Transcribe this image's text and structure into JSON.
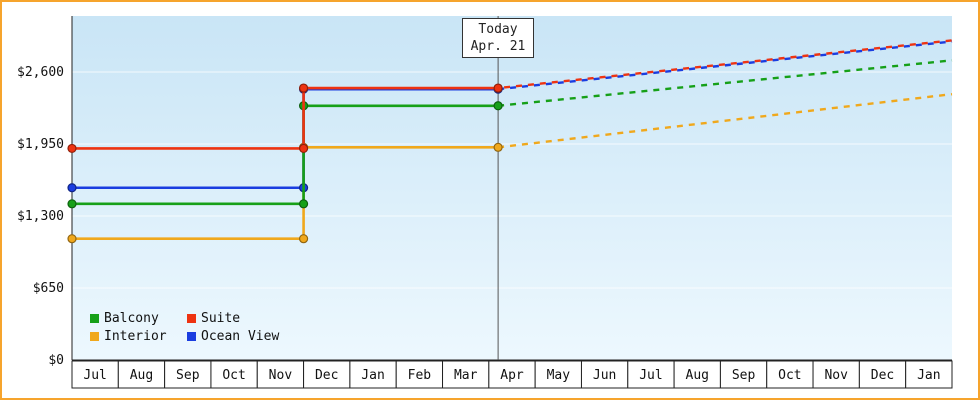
{
  "chart_data": {
    "type": "line",
    "title": "",
    "xlabel": "",
    "ylabel": "",
    "ylim": [
      0,
      3100
    ],
    "history_style": "solid-step",
    "forecast_style": "dashed",
    "legend_position": "bottom-left",
    "grid": true,
    "months": [
      "Jul",
      "Aug",
      "Sep",
      "Oct",
      "Nov",
      "Dec",
      "Jan",
      "Feb",
      "Mar",
      "Apr",
      "May",
      "Jun",
      "Jul",
      "Aug",
      "Sep",
      "Oct",
      "Nov",
      "Dec",
      "Jan"
    ],
    "y_axis": {
      "ticks": [
        0,
        650,
        1300,
        1950,
        2600
      ],
      "tick_labels": [
        "$0",
        "$650",
        "$1,300",
        "$1,950",
        "$2,600"
      ]
    },
    "today": {
      "line1": "Today",
      "line2": "Apr. 21",
      "month_index": 9.2
    },
    "step_month_index": 5,
    "series": [
      {
        "name": "Balcony",
        "color": "#16a018",
        "z": 2,
        "history": [
          {
            "m": 0,
            "price": 1410
          },
          {
            "m": 5,
            "price": 1410
          },
          {
            "m": 5,
            "price": 2295
          },
          {
            "m": 9.2,
            "price": 2295
          }
        ],
        "forecast": [
          {
            "m": 9.2,
            "price": 2295
          },
          {
            "m": 19,
            "price": 2705
          }
        ],
        "dash_offset": 0
      },
      {
        "name": "Suite",
        "color": "#ee3311",
        "z": 3,
        "history": [
          {
            "m": 0,
            "price": 1910
          },
          {
            "m": 5,
            "price": 1910
          },
          {
            "m": 5,
            "price": 2455
          },
          {
            "m": 9.2,
            "price": 2455
          }
        ],
        "forecast": [
          {
            "m": 9.2,
            "price": 2455
          },
          {
            "m": 19,
            "price": 2885
          }
        ],
        "dash_offset": 6
      },
      {
        "name": "Interior",
        "color": "#f0a81c",
        "z": 0,
        "history": [
          {
            "m": 0,
            "price": 1095
          },
          {
            "m": 5,
            "price": 1095
          },
          {
            "m": 5,
            "price": 1920
          },
          {
            "m": 9.2,
            "price": 1920
          }
        ],
        "forecast": [
          {
            "m": 9.2,
            "price": 1920
          },
          {
            "m": 19,
            "price": 2400
          }
        ],
        "dash_offset": 0
      },
      {
        "name": "Ocean View",
        "color": "#1a3de0",
        "z": 1,
        "history": [
          {
            "m": 0,
            "price": 1555
          },
          {
            "m": 5,
            "price": 1555
          },
          {
            "m": 5,
            "price": 2445
          },
          {
            "m": 9.2,
            "price": 2445
          }
        ],
        "forecast": [
          {
            "m": 9.2,
            "price": 2445
          },
          {
            "m": 19,
            "price": 2875
          }
        ],
        "dash_offset": 0
      }
    ]
  }
}
